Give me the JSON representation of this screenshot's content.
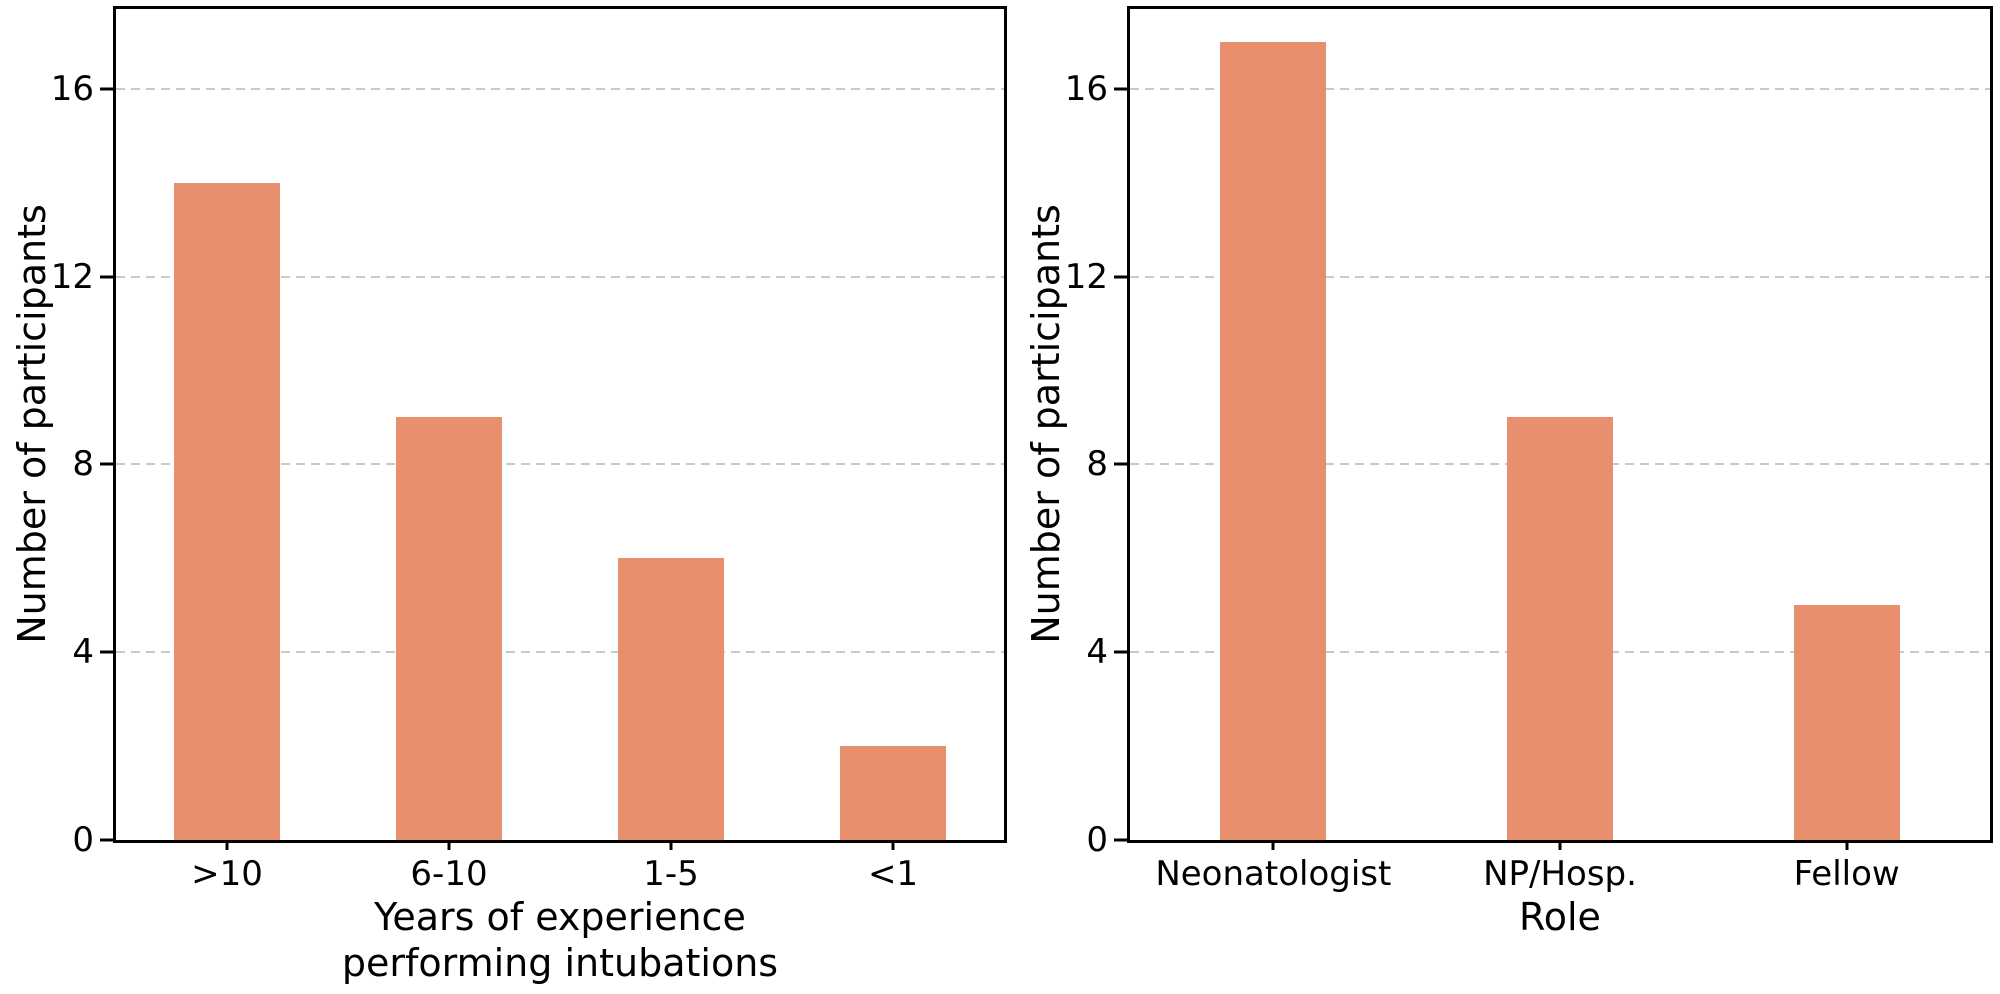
{
  "chart_data": [
    {
      "type": "bar",
      "categories": [
        ">10",
        "6-10",
        "1-5",
        "<1"
      ],
      "values": [
        14,
        9,
        6,
        2
      ],
      "title": "",
      "xlabel": "Years of experience\nperforming intubations",
      "ylabel": "Number of participants",
      "yticks": [
        0,
        4,
        8,
        12,
        16
      ],
      "ylim": [
        0,
        17.7
      ],
      "grid": "horizontal dashed lines at y ticks, behind bars",
      "legend": "none"
    },
    {
      "type": "bar",
      "categories": [
        "Neonatologist",
        "NP/Hosp.",
        "Fellow"
      ],
      "values": [
        17,
        9,
        5
      ],
      "title": "",
      "xlabel": "Role",
      "ylabel": "Number of participants",
      "yticks": [
        0,
        4,
        8,
        12,
        16
      ],
      "ylim": [
        0,
        17.7
      ],
      "grid": "horizontal dashed lines at y ticks, behind bars",
      "legend": "none"
    }
  ],
  "colors": {
    "bar": "#E8906E",
    "grid": "#c9c9c9",
    "axis": "#000000",
    "text": "#000000",
    "background": "#ffffff"
  }
}
